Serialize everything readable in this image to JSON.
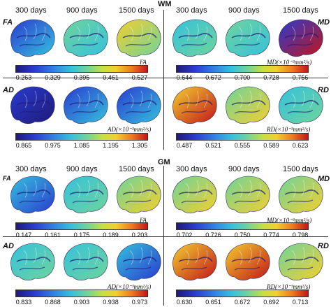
{
  "sections": {
    "wm": "WM",
    "gm": "GM"
  },
  "days": [
    "300 days",
    "900 days",
    "1500 days"
  ],
  "metrics": {
    "fa": "FA",
    "md": "MD",
    "ad": "AD",
    "rd": "RD"
  },
  "colorbars": {
    "wm_fa": {
      "label": "FA",
      "ticks": [
        "0.263",
        "0.329",
        "0.395",
        "0.461",
        "0.527"
      ]
    },
    "wm_md": {
      "label": "MD(×10⁻³mm²/s)",
      "ticks": [
        "0.644",
        "0.672",
        "0.700",
        "0.728",
        "0.756"
      ]
    },
    "wm_ad": {
      "label": "AD(×10⁻³mm²/s)",
      "ticks": [
        "0.865",
        "0.975",
        "1.085",
        "1.195",
        "1.305"
      ]
    },
    "wm_rd": {
      "label": "RD(×10⁻³mm²/s)",
      "ticks": [
        "0.487",
        "0.521",
        "0.555",
        "0.589",
        "0.623"
      ]
    },
    "gm_fa": {
      "label": "FA",
      "ticks": [
        "0.147",
        "0.161",
        "0.175",
        "0.189",
        "0.203"
      ]
    },
    "gm_md": {
      "label": "MD(×10⁻³mm²/s)",
      "ticks": [
        "0.702",
        "0.726",
        "0.750",
        "0.774",
        "0.798"
      ]
    },
    "gm_ad": {
      "label": "AD(×10⁻³mm²/s)",
      "ticks": [
        "0.833",
        "0.868",
        "0.903",
        "0.938",
        "0.973"
      ]
    },
    "gm_rd": {
      "label": "RD(×10⁻³mm²/s)",
      "ticks": [
        "0.630",
        "0.651",
        "0.672",
        "0.692",
        "0.713"
      ]
    }
  },
  "colors": {
    "dark_blue": "#1f1a78",
    "blue": "#2a3bd0",
    "cyan": "#35c1dd",
    "green": "#6fd49a",
    "yellow": "#f3cf2e",
    "red": "#c2161a"
  }
}
